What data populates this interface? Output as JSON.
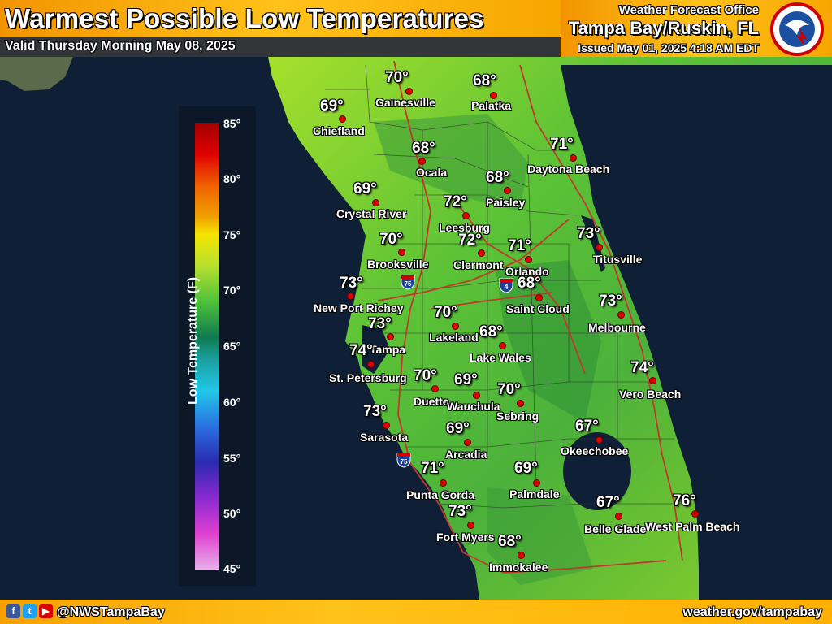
{
  "header": {
    "title": "Warmest Possible Low Temperatures",
    "valid": "Valid Thursday Morning May 08, 2025",
    "wfo_label": "Weather Forecast Office",
    "office": "Tampa Bay/Ruskin, FL",
    "issued": "Issued May 01, 2025 4:18 AM EDT"
  },
  "footer": {
    "handle": "@NWSTampaBay",
    "website": "weather.gov/tampabay",
    "social_icons": [
      "facebook-icon",
      "twitter-icon",
      "youtube-icon"
    ]
  },
  "legend": {
    "title": "Low Temperature (F)",
    "ticks": [
      "85°",
      "80°",
      "75°",
      "70°",
      "65°",
      "60°",
      "55°",
      "50°",
      "45°"
    ]
  },
  "cities": [
    {
      "name": "Gainesville",
      "temp": "70°"
    },
    {
      "name": "Palatka",
      "temp": "68°"
    },
    {
      "name": "Chiefland",
      "temp": "69°"
    },
    {
      "name": "Ocala",
      "temp": "68°"
    },
    {
      "name": "Daytona Beach",
      "temp": "71°"
    },
    {
      "name": "Paisley",
      "temp": "68°"
    },
    {
      "name": "Crystal River",
      "temp": "69°"
    },
    {
      "name": "Leesburg",
      "temp": "72°"
    },
    {
      "name": "Brooksville",
      "temp": "70°"
    },
    {
      "name": "Clermont",
      "temp": "72°"
    },
    {
      "name": "Orlando",
      "temp": "71°"
    },
    {
      "name": "Titusville",
      "temp": "73°"
    },
    {
      "name": "New Port Richey",
      "temp": "73°"
    },
    {
      "name": "Saint Cloud",
      "temp": "68°"
    },
    {
      "name": "Lakeland",
      "temp": "70°"
    },
    {
      "name": "Tampa",
      "temp": "73°"
    },
    {
      "name": "Melbourne",
      "temp": "73°"
    },
    {
      "name": "Lake Wales",
      "temp": "68°"
    },
    {
      "name": "St. Petersburg",
      "temp": "74°"
    },
    {
      "name": "Duette",
      "temp": "70°"
    },
    {
      "name": "Wauchula",
      "temp": "69°"
    },
    {
      "name": "Vero Beach",
      "temp": "74°"
    },
    {
      "name": "Sebring",
      "temp": "70°"
    },
    {
      "name": "Sarasota",
      "temp": "73°"
    },
    {
      "name": "Arcadia",
      "temp": "69°"
    },
    {
      "name": "Okeechobee",
      "temp": "67°"
    },
    {
      "name": "Punta Gorda",
      "temp": "71°"
    },
    {
      "name": "Palmdale",
      "temp": "69°"
    },
    {
      "name": "Fort Myers",
      "temp": "73°"
    },
    {
      "name": "Belle Glade",
      "temp": "67°"
    },
    {
      "name": "West Palm Beach",
      "temp": "76°"
    },
    {
      "name": "Immokalee",
      "temp": "68°"
    }
  ],
  "highways": [
    {
      "name": "I-75-shield-north",
      "label": "75"
    },
    {
      "name": "I-4-shield",
      "label": "4"
    },
    {
      "name": "I-75-shield-south",
      "label": "75"
    }
  ],
  "colors": {
    "land_warm": "#7ed321",
    "land_mid": "#5cb82a",
    "land_cool": "#2e9a3a",
    "water": "#0e1e33",
    "roads": "#c0392b",
    "footer": "#ffb000"
  }
}
